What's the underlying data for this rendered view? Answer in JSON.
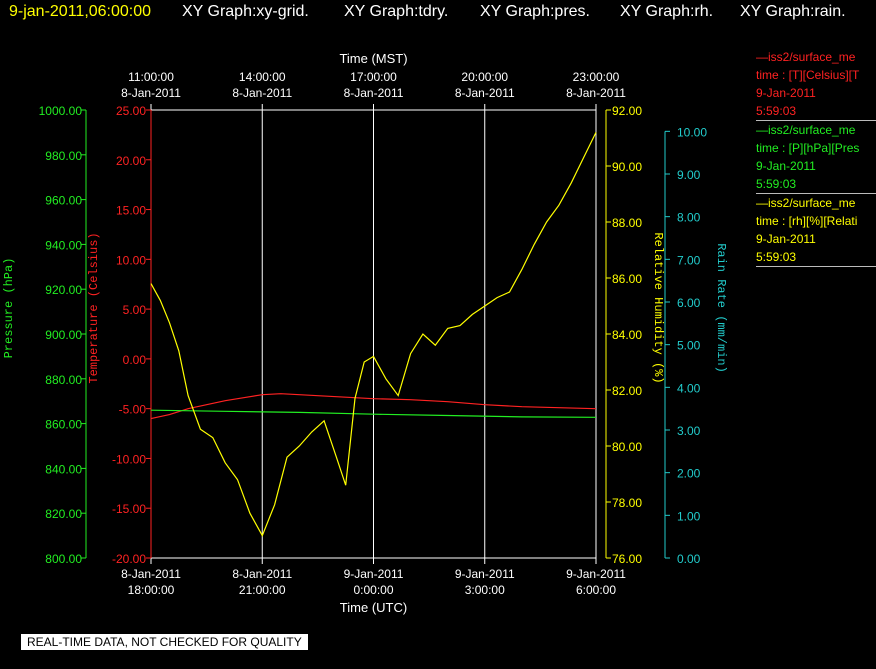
{
  "header": {
    "timestamp": "9-jan-2011,06:00:00",
    "graphs": [
      "XY Graph:xy-grid.",
      "XY Graph:tdry.",
      "XY Graph:pres.",
      "XY Graph:rh.",
      "XY Graph:rain."
    ],
    "timestamp_color": "#ffff00",
    "graph_color": "#ffffff"
  },
  "legend": [
    {
      "line": "—iss2/surface_me",
      "units": "time : [T][Celsius][T",
      "date": "9-Jan-2011",
      "time": "5:59:03",
      "color": "#ff2222"
    },
    {
      "line": "—iss2/surface_me",
      "units": "time : [P][hPa][Pres",
      "date": "9-Jan-2011",
      "time": "5:59:03",
      "color": "#22ee22"
    },
    {
      "line": "—iss2/surface_me",
      "units": "time : [rh][%][Relati",
      "date": "9-Jan-2011",
      "time": "5:59:03",
      "color": "#ffff00"
    }
  ],
  "footer_note": "REAL-TIME DATA, NOT CHECKED FOR QUALITY",
  "chart_data": {
    "type": "line",
    "top_axis": {
      "title": "Time (MST)",
      "ticks": [
        [
          "11:00:00",
          "8-Jan-2011"
        ],
        [
          "14:00:00",
          "8-Jan-2011"
        ],
        [
          "17:00:00",
          "8-Jan-2011"
        ],
        [
          "20:00:00",
          "8-Jan-2011"
        ],
        [
          "23:00:00",
          "8-Jan-2011"
        ]
      ]
    },
    "bottom_axis": {
      "title": "Time (UTC)",
      "ticks": [
        [
          "8-Jan-2011",
          "18:00:00"
        ],
        [
          "8-Jan-2011",
          "21:00:00"
        ],
        [
          "9-Jan-2011",
          "0:00:00"
        ],
        [
          "9-Jan-2011",
          "3:00:00"
        ],
        [
          "9-Jan-2011",
          "6:00:00"
        ]
      ],
      "range": [
        "8-Jan-2011 18:00:00",
        "9-Jan-2011 6:00:00"
      ]
    },
    "grid": "vertical lines at major time ticks",
    "y_axes": [
      {
        "id": "pres",
        "label": "Pressure (hPa)",
        "color": "#22ee22",
        "ylim": [
          800,
          1000
        ],
        "ticks": [
          "800.00",
          "820.00",
          "840.00",
          "860.00",
          "880.00",
          "900.00",
          "920.00",
          "940.00",
          "960.00",
          "980.00",
          "1000.00"
        ]
      },
      {
        "id": "temp",
        "label": "Temperature (Celsius)",
        "color": "#ff2222",
        "ylim": [
          -20,
          25
        ],
        "ticks": [
          "-20.00",
          "-15.00",
          "-10.00",
          "-5.00",
          "0.00",
          "5.00",
          "10.00",
          "15.00",
          "20.00",
          "25.00"
        ]
      },
      {
        "id": "rh",
        "label": "Relative Humidity (%)",
        "color": "#ffff00",
        "ylim": [
          76,
          92
        ],
        "ticks": [
          "76.00",
          "78.00",
          "80.00",
          "82.00",
          "84.00",
          "86.00",
          "88.00",
          "90.00",
          "92.00"
        ]
      },
      {
        "id": "rain",
        "label": "Rain Rate (mm/min)",
        "color": "#22cccc",
        "ylim": [
          0,
          10.5
        ],
        "ticks": [
          "0.00",
          "1.00",
          "2.00",
          "3.00",
          "4.00",
          "5.00",
          "6.00",
          "7.00",
          "8.00",
          "9.00",
          "10.00"
        ]
      }
    ],
    "series": [
      {
        "axis": "temp",
        "color": "#ff2222",
        "x": [
          "8-Jan-2011 18:00",
          "8-Jan-2011 18:30",
          "8-Jan-2011 19:00",
          "8-Jan-2011 19:30",
          "8-Jan-2011 20:00",
          "8-Jan-2011 20:30",
          "8-Jan-2011 21:00",
          "8-Jan-2011 21:30",
          "8-Jan-2011 22:00",
          "8-Jan-2011 23:00",
          "9-Jan-2011 0:00",
          "9-Jan-2011 1:00",
          "9-Jan-2011 2:00",
          "9-Jan-2011 3:00",
          "9-Jan-2011 4:00",
          "9-Jan-2011 5:00",
          "9-Jan-2011 6:00"
        ],
        "values": [
          -6.0,
          -5.6,
          -5.0,
          -4.6,
          -4.2,
          -3.9,
          -3.6,
          -3.5,
          -3.6,
          -3.8,
          -4.0,
          -4.1,
          -4.3,
          -4.6,
          -4.8,
          -4.9,
          -5.0
        ]
      },
      {
        "axis": "pres",
        "color": "#22ee22",
        "x": [
          "8-Jan-2011 18:00",
          "8-Jan-2011 20:00",
          "8-Jan-2011 22:00",
          "9-Jan-2011 0:00",
          "9-Jan-2011 2:00",
          "9-Jan-2011 4:00",
          "9-Jan-2011 6:00"
        ],
        "values": [
          866.0,
          865.5,
          865.0,
          864.2,
          863.6,
          863.0,
          862.8
        ]
      },
      {
        "axis": "rh",
        "color": "#ffff00",
        "x": [
          "8-Jan-2011 18:00",
          "8-Jan-2011 18:15",
          "8-Jan-2011 18:30",
          "8-Jan-2011 18:45",
          "8-Jan-2011 19:00",
          "8-Jan-2011 19:20",
          "8-Jan-2011 19:40",
          "8-Jan-2011 20:00",
          "8-Jan-2011 20:20",
          "8-Jan-2011 20:40",
          "8-Jan-2011 21:00",
          "8-Jan-2011 21:20",
          "8-Jan-2011 21:40",
          "8-Jan-2011 22:00",
          "8-Jan-2011 22:20",
          "8-Jan-2011 22:40",
          "8-Jan-2011 23:00",
          "8-Jan-2011 23:15",
          "8-Jan-2011 23:30",
          "8-Jan-2011 23:45",
          "9-Jan-2011 0:00",
          "9-Jan-2011 0:20",
          "9-Jan-2011 0:40",
          "9-Jan-2011 1:00",
          "9-Jan-2011 1:20",
          "9-Jan-2011 1:40",
          "9-Jan-2011 2:00",
          "9-Jan-2011 2:20",
          "9-Jan-2011 2:40",
          "9-Jan-2011 3:00",
          "9-Jan-2011 3:20",
          "9-Jan-2011 3:40",
          "9-Jan-2011 4:00",
          "9-Jan-2011 4:20",
          "9-Jan-2011 4:40",
          "9-Jan-2011 5:00",
          "9-Jan-2011 5:20",
          "9-Jan-2011 5:40",
          "9-Jan-2011 6:00"
        ],
        "values": [
          85.8,
          85.2,
          84.4,
          83.4,
          81.8,
          80.6,
          80.3,
          79.4,
          78.8,
          77.6,
          76.8,
          77.9,
          79.6,
          80.0,
          80.5,
          80.9,
          79.6,
          78.6,
          81.7,
          83.0,
          83.2,
          82.4,
          81.8,
          83.3,
          84.0,
          83.6,
          84.2,
          84.3,
          84.7,
          85.0,
          85.3,
          85.5,
          86.3,
          87.2,
          88.0,
          88.6,
          89.4,
          90.3,
          91.2
        ]
      }
    ]
  }
}
